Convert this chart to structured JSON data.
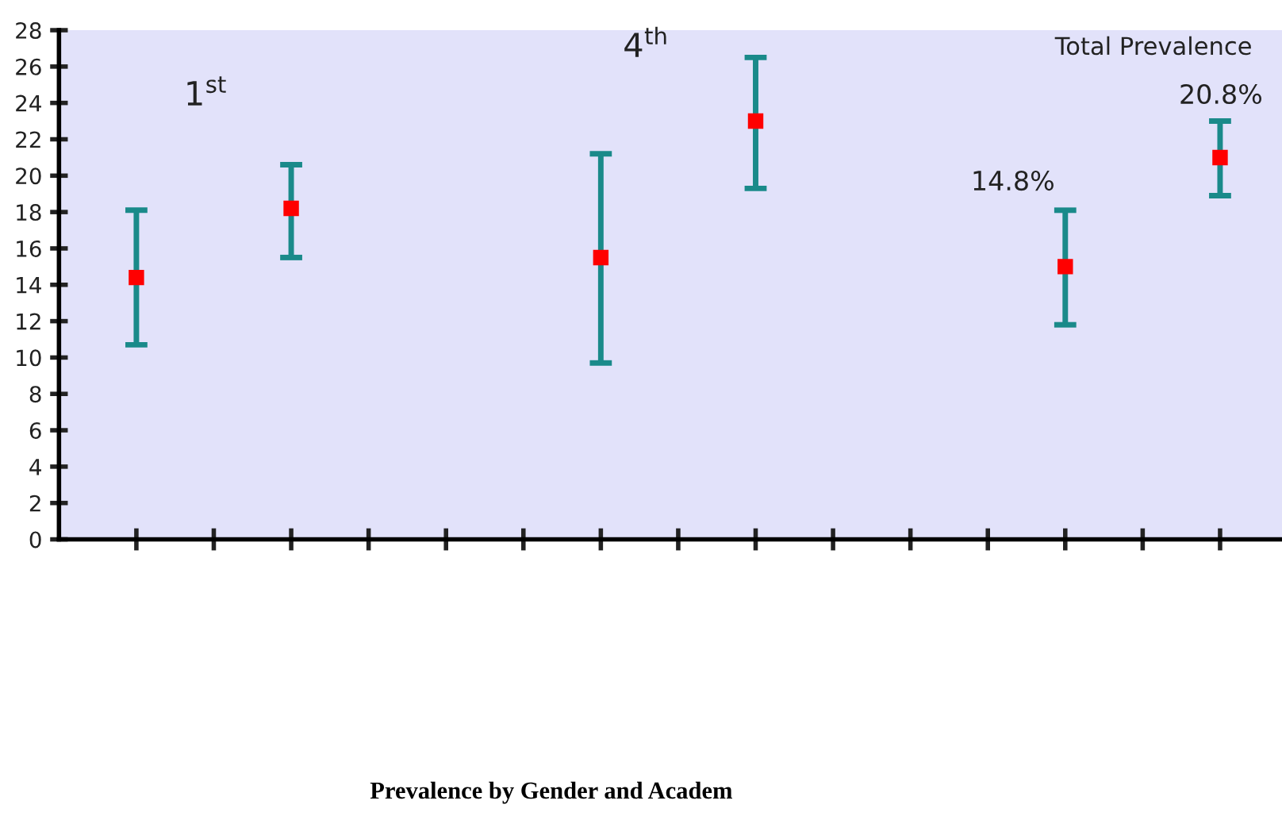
{
  "chart_data": {
    "type": "scatter",
    "title": "Prevalence by Gender and Academ",
    "categories": [
      null,
      null,
      null,
      null,
      null,
      null,
      null,
      null,
      null,
      null,
      null,
      null,
      null,
      null,
      null
    ],
    "series": [
      {
        "color": "#ff0000",
        "values": [
          14.4,
          null,
          18.2,
          null,
          null,
          null,
          15.5,
          null,
          23.0,
          null,
          null,
          null,
          15.0,
          null,
          21.0
        ],
        "errors": [
          [
            10.7,
            18.1
          ],
          null,
          [
            15.5,
            20.6
          ],
          null,
          null,
          null,
          [
            9.7,
            21.2
          ],
          null,
          [
            19.3,
            26.5
          ],
          null,
          null,
          null,
          [
            11.8,
            18.1
          ],
          null,
          [
            18.9,
            23.0
          ]
        ]
      }
    ],
    "ylim": [
      0,
      28
    ],
    "yticks": [
      0,
      2,
      4,
      6,
      8,
      10,
      12,
      14,
      16,
      18,
      20,
      22,
      24,
      26,
      28
    ],
    "annotations": [
      "1$^{st}$",
      "4$^{th}$",
      "Total Prevalence",
      "14.8%",
      "20.8%"
    ],
    "marker": "square",
    "grid": false,
    "legend": false
  }
}
